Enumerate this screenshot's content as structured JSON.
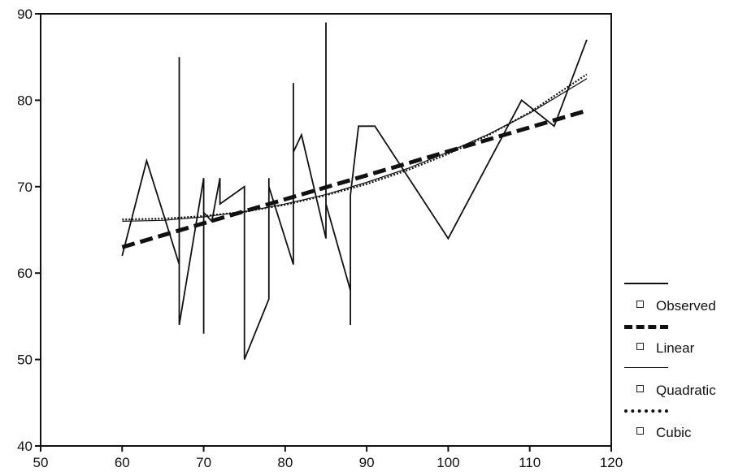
{
  "chart_data": {
    "type": "line",
    "xlim": [
      50,
      120
    ],
    "ylim": [
      40,
      90
    ],
    "x_ticks": [
      50,
      60,
      70,
      80,
      90,
      100,
      110,
      120
    ],
    "y_ticks": [
      40,
      50,
      60,
      70,
      80,
      90
    ],
    "grid": false,
    "legend_position": "right",
    "series": [
      {
        "name": "Observed",
        "style": "solid",
        "color": "#111111",
        "x": [
          60,
          63,
          67,
          67,
          67,
          70,
          70,
          70,
          71,
          72,
          72,
          75,
          75,
          78,
          78,
          78,
          81,
          81,
          81,
          82,
          85,
          85,
          85,
          88,
          88,
          88,
          89,
          91,
          100,
          109,
          113,
          117
        ],
        "y": [
          62,
          73,
          61,
          85,
          54,
          71,
          53,
          67,
          66,
          71,
          68,
          70,
          50,
          57,
          71,
          70,
          61,
          82,
          74,
          76,
          64,
          89,
          68,
          58,
          54,
          69,
          77,
          77,
          64,
          80,
          77,
          87
        ]
      },
      {
        "name": "Linear",
        "style": "dashed-heavy",
        "color": "#111111",
        "x": [
          60,
          117
        ],
        "y": [
          63.0,
          78.8
        ]
      },
      {
        "name": "Quadratic",
        "style": "thin",
        "color": "#111111",
        "x": [
          60,
          65,
          70,
          75,
          80,
          85,
          90,
          95,
          100,
          105,
          110,
          117
        ],
        "y": [
          66.0,
          66.1,
          66.5,
          67.1,
          68.0,
          69.1,
          70.5,
          72.1,
          74.0,
          76.1,
          78.5,
          82.5
        ]
      },
      {
        "name": "Cubic",
        "style": "dotted",
        "color": "#111111",
        "x": [
          60,
          65,
          70,
          75,
          80,
          85,
          90,
          95,
          100,
          105,
          110,
          117
        ],
        "y": [
          66.2,
          66.3,
          66.6,
          67.1,
          67.9,
          69.0,
          70.3,
          71.9,
          73.8,
          76.0,
          78.6,
          83.0
        ]
      }
    ]
  }
}
